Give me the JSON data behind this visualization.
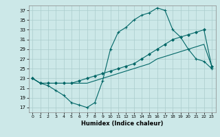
{
  "title": "",
  "xlabel": "Humidex (Indice chaleur)",
  "bg_color": "#cce8e8",
  "grid_color": "#aacccc",
  "line_color": "#006666",
  "xlim": [
    -0.5,
    23.5
  ],
  "ylim": [
    16,
    38
  ],
  "yticks": [
    17,
    19,
    21,
    23,
    25,
    27,
    29,
    31,
    33,
    35,
    37
  ],
  "xticks": [
    0,
    1,
    2,
    3,
    4,
    5,
    6,
    7,
    8,
    9,
    10,
    11,
    12,
    13,
    14,
    15,
    16,
    17,
    18,
    19,
    20,
    21,
    22,
    23
  ],
  "line1_x": [
    0,
    1,
    2,
    3,
    4,
    5,
    6,
    7,
    8,
    9,
    10,
    11,
    12,
    13,
    14,
    15,
    16,
    17,
    18,
    19,
    20,
    21,
    22,
    23
  ],
  "line1_y": [
    23,
    22,
    21.5,
    20.5,
    19.5,
    18,
    17.5,
    17,
    18,
    22.5,
    29,
    32.5,
    33.5,
    35,
    36,
    36.5,
    37.5,
    37,
    33,
    31.5,
    29,
    27,
    26.5,
    25
  ],
  "line2_x": [
    0,
    1,
    2,
    3,
    4,
    5,
    6,
    7,
    8,
    9,
    10,
    11,
    12,
    13,
    14,
    15,
    16,
    17,
    18,
    19,
    20,
    21,
    22,
    23
  ],
  "line2_y": [
    23,
    22,
    22,
    22,
    22,
    22,
    22.5,
    23,
    23.5,
    24,
    24.5,
    25,
    25.5,
    26,
    27,
    28,
    29,
    30,
    31,
    31.5,
    32,
    32.5,
    33,
    25.5
  ],
  "line3_x": [
    0,
    1,
    2,
    3,
    4,
    5,
    6,
    7,
    8,
    9,
    10,
    11,
    12,
    13,
    14,
    15,
    16,
    17,
    18,
    19,
    20,
    21,
    22,
    23
  ],
  "line3_y": [
    23,
    22,
    22,
    22,
    22,
    22,
    22,
    22,
    22.5,
    23,
    23.5,
    24,
    24.5,
    25,
    25.5,
    26,
    27,
    27.5,
    28,
    28.5,
    29,
    29.5,
    30,
    25.5
  ]
}
